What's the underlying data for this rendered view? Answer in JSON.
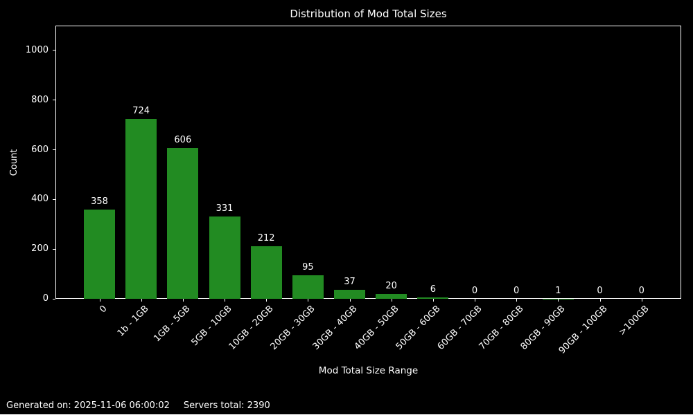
{
  "page": {
    "background_color": "#000000",
    "text_color": "#ffffff"
  },
  "chart_data": {
    "type": "bar",
    "title": "Distribution of Mod Total Sizes",
    "xlabel": "Mod Total Size Range",
    "ylabel": "Count",
    "categories": [
      "0",
      "1b - 1GB",
      "1GB - 5GB",
      "5GB - 10GB",
      "10GB - 20GB",
      "20GB - 30GB",
      "30GB - 40GB",
      "40GB - 50GB",
      "50GB - 60GB",
      "60GB - 70GB",
      "70GB - 80GB",
      "80GB - 90GB",
      "90GB - 100GB",
      ">100GB"
    ],
    "values": [
      358,
      724,
      606,
      331,
      212,
      95,
      37,
      20,
      6,
      0,
      0,
      1,
      0,
      0
    ],
    "bar_color": "#228B22",
    "ylim": [
      0,
      1100
    ],
    "yticks": [
      0,
      200,
      400,
      600,
      800,
      1000
    ],
    "grid": false,
    "value_labels_shown": true,
    "xtick_rotation_degrees": 45,
    "legend": "none"
  },
  "footer": {
    "generated_on": "Generated on: 2025-11-06 06:00:02",
    "servers_total": "Servers total: 2390"
  }
}
